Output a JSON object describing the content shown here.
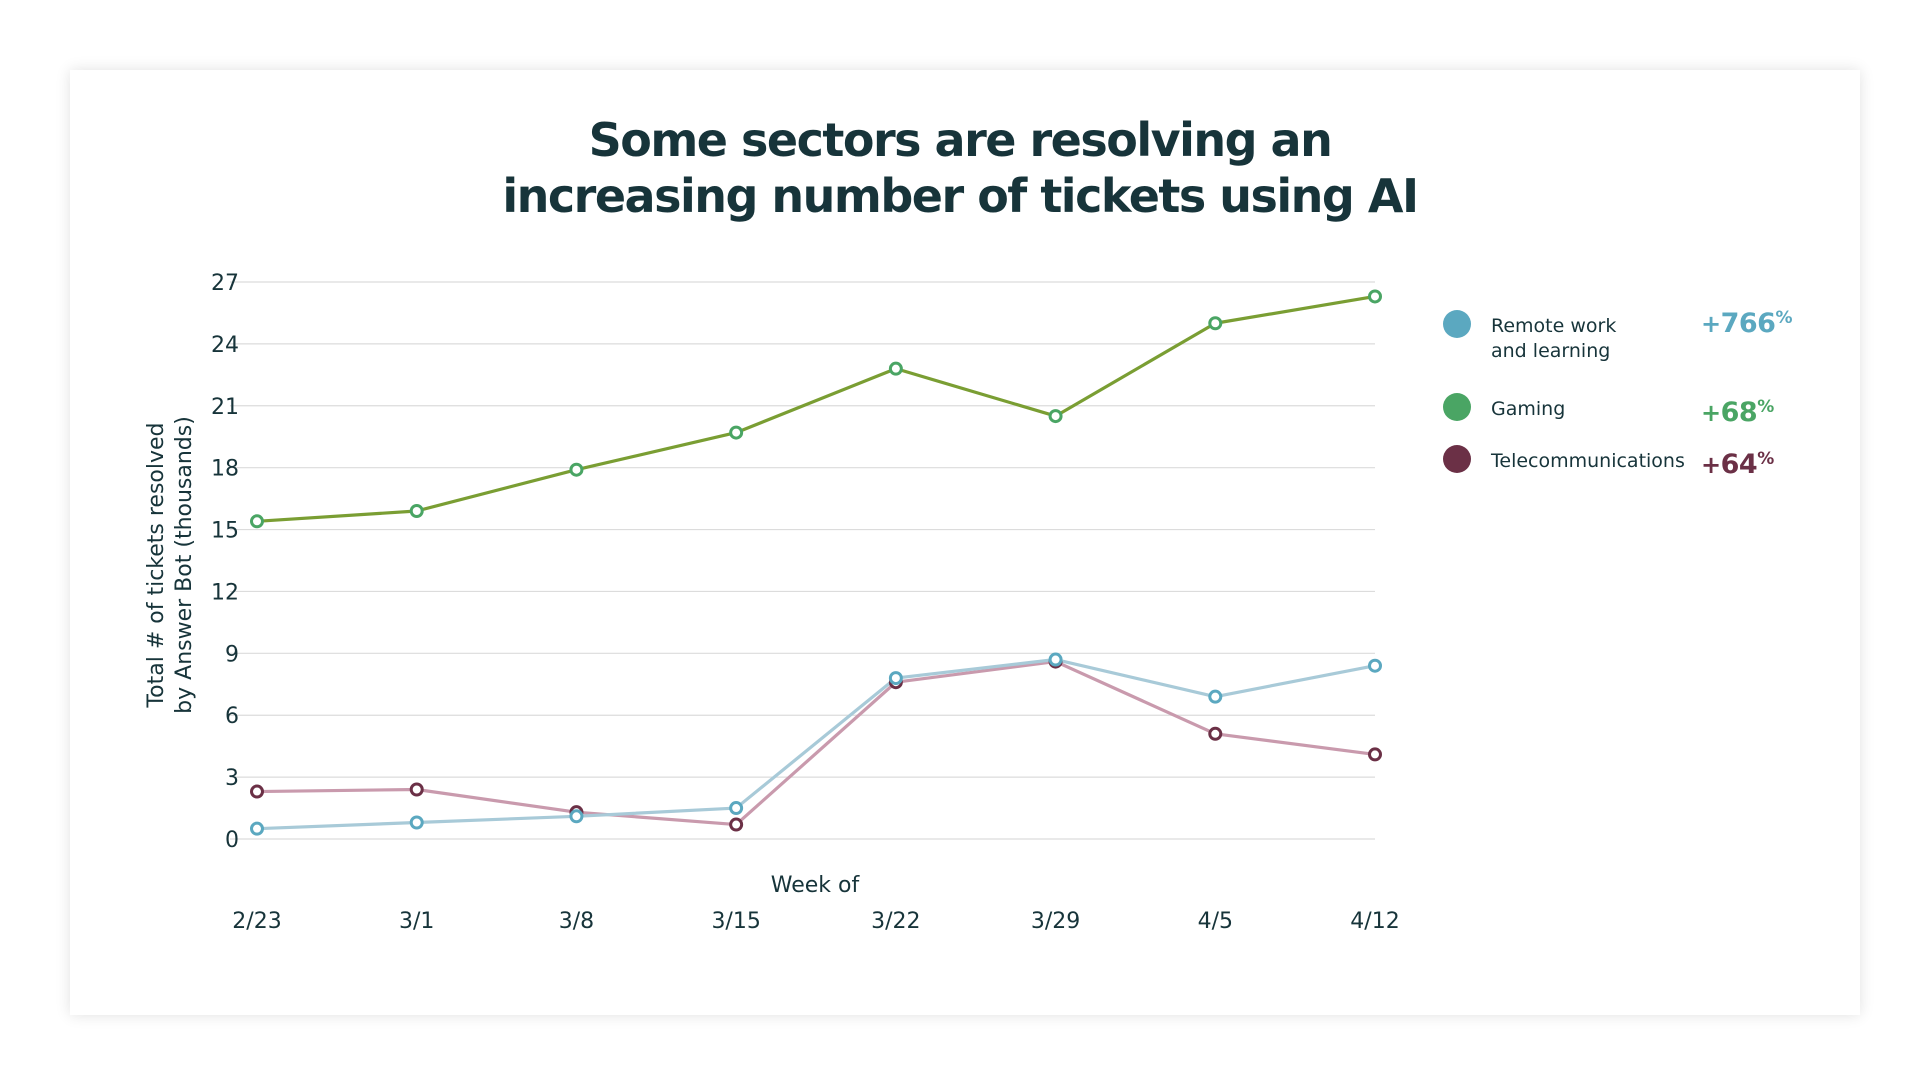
{
  "title": {
    "line1": "Some sectors are resolving an",
    "line2": "increasing number of tickets using AI"
  },
  "chart_data": {
    "type": "line",
    "title": "Some sectors are resolving an increasing number of tickets using AI",
    "xlabel": "Week of",
    "ylabel_line1": "Total # of tickets resolved",
    "ylabel_line2": "by Answer Bot (thousands)",
    "categories": [
      "2/23",
      "3/1",
      "3/8",
      "3/15",
      "3/22",
      "3/29",
      "4/5",
      "4/12"
    ],
    "ylim": [
      0,
      27
    ],
    "yticks": [
      0,
      3,
      6,
      9,
      12,
      15,
      18,
      21,
      24,
      27
    ],
    "grid": true,
    "legend_position": "right",
    "series": [
      {
        "name": "Remote work and learning",
        "name_line1": "Remote work",
        "name_line2": "and learning",
        "change_sign": "+",
        "change_value": "766",
        "change_unit": "%",
        "color": "#5ba8c0",
        "line_color": "#a8cad8",
        "values": [
          0.5,
          0.8,
          1.1,
          1.5,
          7.8,
          8.7,
          6.9,
          8.4
        ]
      },
      {
        "name": "Gaming",
        "name_line1": "Gaming",
        "change_sign": "+",
        "change_value": "68",
        "change_unit": "%",
        "color": "#4aa564",
        "line_color": "#7a9e33",
        "values": [
          15.4,
          15.9,
          17.9,
          19.7,
          22.8,
          20.5,
          25.0,
          26.3
        ]
      },
      {
        "name": "Telecommunications",
        "name_line1": "Telecommunications",
        "change_sign": "+",
        "change_value": "64",
        "change_unit": "%",
        "color": "#6b3046",
        "line_color": "#c99aad",
        "values": [
          2.3,
          2.4,
          1.3,
          0.7,
          7.6,
          8.6,
          5.1,
          4.1
        ]
      }
    ]
  }
}
